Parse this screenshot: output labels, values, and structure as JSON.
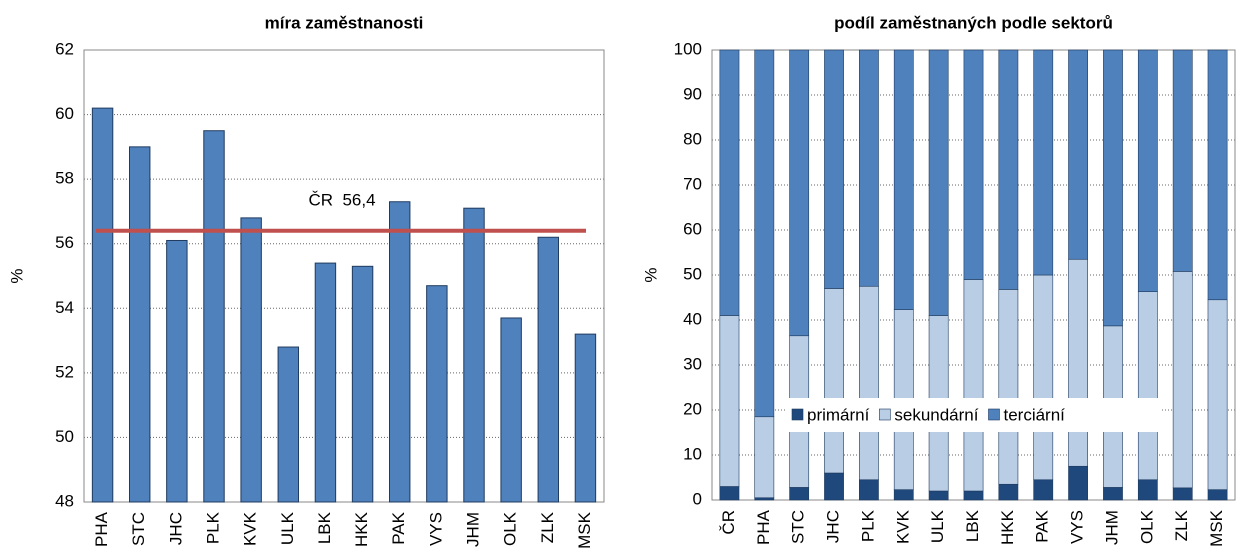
{
  "chart_data": [
    {
      "type": "bar",
      "title": "míra zaměstnanosti",
      "y_label": "%",
      "categories": [
        "PHA",
        "STC",
        "JHC",
        "PLK",
        "KVK",
        "ULK",
        "LBK",
        "HKK",
        "PAK",
        "VYS",
        "JHM",
        "OLK",
        "ZLK",
        "MSK"
      ],
      "values": [
        60.2,
        59.0,
        56.1,
        59.5,
        56.8,
        52.8,
        55.4,
        55.3,
        57.3,
        54.7,
        57.1,
        53.7,
        56.2,
        53.2
      ],
      "color": "#4f81bd",
      "ylim": [
        48,
        62
      ],
      "yticks": [
        48,
        50,
        52,
        54,
        56,
        58,
        60,
        62
      ],
      "grid": true,
      "reference_line": {
        "value": 56.4,
        "label": "ČR  56,4",
        "color": "#c0504d"
      }
    },
    {
      "type": "stacked_bar",
      "title": "podíl zaměstnaných podle sektorů",
      "y_label": "%",
      "categories": [
        "ČR",
        "PHA",
        "STC",
        "JHC",
        "PLK",
        "KVK",
        "ULK",
        "LBK",
        "HKK",
        "PAK",
        "VYS",
        "JHM",
        "OLK",
        "ZLK",
        "MSK"
      ],
      "series": [
        {
          "name": "primární",
          "color": "#1f497d",
          "values": [
            3.0,
            0.5,
            2.8,
            6.0,
            4.5,
            2.3,
            2.0,
            2.0,
            3.5,
            4.5,
            7.5,
            2.8,
            4.5,
            2.7,
            2.3
          ]
        },
        {
          "name": "sekundární",
          "color": "#b9cde5",
          "values": [
            38.0,
            18.0,
            33.7,
            41.0,
            43.0,
            40.0,
            39.0,
            47.0,
            43.3,
            45.5,
            46.0,
            35.9,
            41.8,
            48.1,
            42.2
          ]
        },
        {
          "name": "terciární",
          "color": "#4f81bd",
          "values": [
            59.0,
            81.5,
            63.5,
            53.0,
            52.5,
            57.7,
            59.0,
            51.0,
            53.2,
            50.0,
            46.5,
            61.3,
            53.7,
            49.2,
            55.5
          ]
        }
      ],
      "ylim": [
        0,
        100
      ],
      "yticks": [
        0,
        10,
        20,
        30,
        40,
        50,
        60,
        70,
        80,
        90,
        100
      ],
      "grid": true,
      "legend": "lower-center"
    }
  ]
}
